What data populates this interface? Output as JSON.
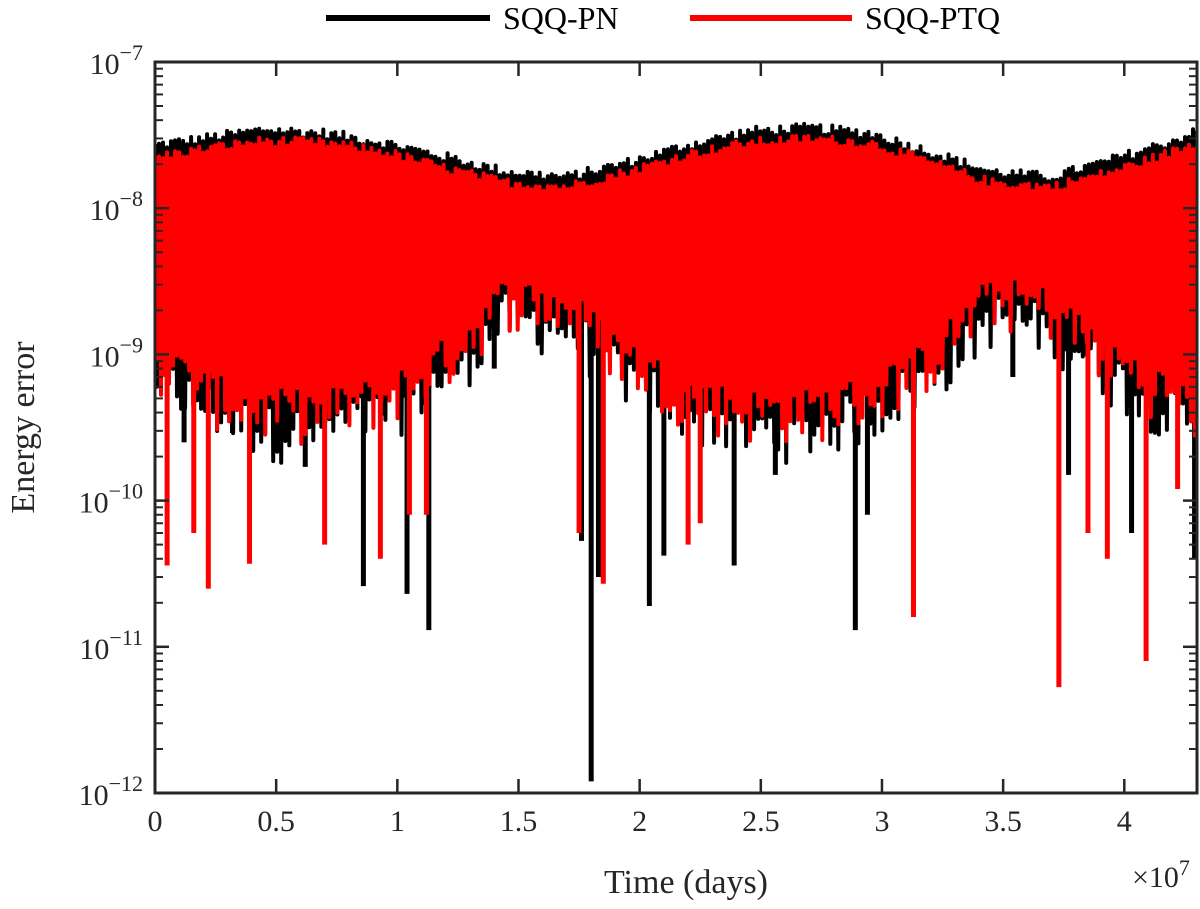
{
  "chart_data": {
    "type": "line",
    "title": "",
    "xlabel": "Time (days)",
    "ylabel": "Energy error",
    "x_multiplier_label": "×10",
    "x_multiplier_exponent": "7",
    "x_scale": "linear",
    "y_scale": "log",
    "xlim": [
      0,
      43000000
    ],
    "ylim": [
      1e-12,
      1e-07
    ],
    "grid": false,
    "legend_position": "top-center",
    "legend_orientation": "horizontal",
    "x_ticks": [
      {
        "value": 0,
        "label": "0"
      },
      {
        "value": 5000000,
        "label": "0.5"
      },
      {
        "value": 10000000,
        "label": "1"
      },
      {
        "value": 15000000,
        "label": "1.5"
      },
      {
        "value": 20000000,
        "label": "2"
      },
      {
        "value": 25000000,
        "label": "2.5"
      },
      {
        "value": 30000000,
        "label": "3"
      },
      {
        "value": 35000000,
        "label": "3.5"
      },
      {
        "value": 40000000,
        "label": "4"
      }
    ],
    "y_ticks": [
      {
        "value": 1e-12,
        "base": "10",
        "exp": "−12"
      },
      {
        "value": 1e-11,
        "base": "10",
        "exp": "−11"
      },
      {
        "value": 1e-10,
        "base": "10",
        "exp": "−10"
      },
      {
        "value": 1e-09,
        "base": "10",
        "exp": "−9"
      },
      {
        "value": 1e-08,
        "base": "10",
        "exp": "−8"
      },
      {
        "value": 1e-07,
        "base": "10",
        "exp": "−7"
      }
    ],
    "series": [
      {
        "name": "SQQ-PN",
        "color": "#000000",
        "envelope_x": [
          0,
          2500000,
          4500000,
          7000000,
          9500000,
          12000000,
          14500000,
          17000000,
          19500000,
          22000000,
          24500000,
          27000000,
          29500000,
          32000000,
          34500000,
          37000000,
          39500000,
          42000000,
          43000000
        ],
        "envelope_upper": [
          2.9e-08,
          3.3e-08,
          3.7e-08,
          3.5e-08,
          3e-08,
          2.4e-08,
          1.9e-08,
          1.75e-08,
          2.2e-08,
          2.9e-08,
          3.6e-08,
          3.8e-08,
          3.5e-08,
          2.6e-08,
          1.9e-08,
          1.75e-08,
          2.3e-08,
          3.1e-08,
          3.6e-08
        ],
        "envelope_lower": [
          7e-10,
          4e-10,
          3e-10,
          3e-10,
          4e-10,
          7e-10,
          1.8e-09,
          1.5e-09,
          7e-10,
          4e-10,
          3e-10,
          3e-10,
          4e-10,
          7e-10,
          1.8e-09,
          1.5e-09,
          7e-10,
          4e-10,
          3e-10
        ],
        "minima": [
          {
            "x": 1200000,
            "y": 2.5e-10
          },
          {
            "x": 3200000,
            "y": 2.9e-10
          },
          {
            "x": 6200000,
            "y": 1.7e-10
          },
          {
            "x": 8600000,
            "y": 2.6e-11
          },
          {
            "x": 10400000,
            "y": 2.3e-11
          },
          {
            "x": 11300000,
            "y": 1.3e-11
          },
          {
            "x": 14000000,
            "y": 8e-10
          },
          {
            "x": 17600000,
            "y": 5.3e-11
          },
          {
            "x": 18000000,
            "y": 1.2e-12
          },
          {
            "x": 18300000,
            "y": 3e-11
          },
          {
            "x": 20400000,
            "y": 1.9e-11
          },
          {
            "x": 21000000,
            "y": 4.2e-11
          },
          {
            "x": 23900000,
            "y": 3.6e-11
          },
          {
            "x": 25600000,
            "y": 1.5e-10
          },
          {
            "x": 28900000,
            "y": 1.3e-11
          },
          {
            "x": 29400000,
            "y": 8e-11
          },
          {
            "x": 31300000,
            "y": 1.2e-10
          },
          {
            "x": 35400000,
            "y": 7e-10
          },
          {
            "x": 37700000,
            "y": 1.5e-10
          },
          {
            "x": 40300000,
            "y": 6e-11
          },
          {
            "x": 42900000,
            "y": 4e-11
          }
        ]
      },
      {
        "name": "SQQ-PTQ",
        "color": "#ff0000",
        "envelope_x": [
          0,
          2500000,
          4500000,
          7000000,
          9500000,
          12000000,
          14500000,
          17000000,
          19500000,
          22000000,
          24500000,
          27000000,
          29500000,
          32000000,
          34500000,
          37000000,
          39500000,
          42000000,
          43000000
        ],
        "envelope_upper": [
          2.4e-08,
          2.8e-08,
          3.1e-08,
          3e-08,
          2.6e-08,
          2e-08,
          1.6e-08,
          1.5e-08,
          1.9e-08,
          2.5e-08,
          3e-08,
          3.2e-08,
          3e-08,
          2.2e-08,
          1.6e-08,
          1.5e-08,
          1.9e-08,
          2.6e-08,
          3e-08
        ],
        "envelope_lower": [
          9e-10,
          5e-10,
          4e-10,
          4e-10,
          5e-10,
          9e-10,
          2.4e-09,
          2e-09,
          9e-10,
          5e-10,
          4e-10,
          4e-10,
          5e-10,
          9e-10,
          2.4e-09,
          2e-09,
          9e-10,
          5e-10,
          4e-10
        ],
        "minima": [
          {
            "x": 500000,
            "y": 3.6e-11
          },
          {
            "x": 1600000,
            "y": 6e-11
          },
          {
            "x": 2200000,
            "y": 2.5e-11
          },
          {
            "x": 3900000,
            "y": 3.7e-11
          },
          {
            "x": 7000000,
            "y": 5e-11
          },
          {
            "x": 9300000,
            "y": 4e-11
          },
          {
            "x": 10500000,
            "y": 8e-11
          },
          {
            "x": 11200000,
            "y": 8e-11
          },
          {
            "x": 17500000,
            "y": 6e-11
          },
          {
            "x": 18500000,
            "y": 2.7e-11
          },
          {
            "x": 22000000,
            "y": 5e-11
          },
          {
            "x": 22500000,
            "y": 7e-11
          },
          {
            "x": 31300000,
            "y": 1.6e-11
          },
          {
            "x": 37300000,
            "y": 5.3e-12
          },
          {
            "x": 38500000,
            "y": 6e-11
          },
          {
            "x": 39300000,
            "y": 4e-11
          },
          {
            "x": 40900000,
            "y": 8e-12
          },
          {
            "x": 42200000,
            "y": 1.2e-10
          }
        ]
      }
    ]
  }
}
